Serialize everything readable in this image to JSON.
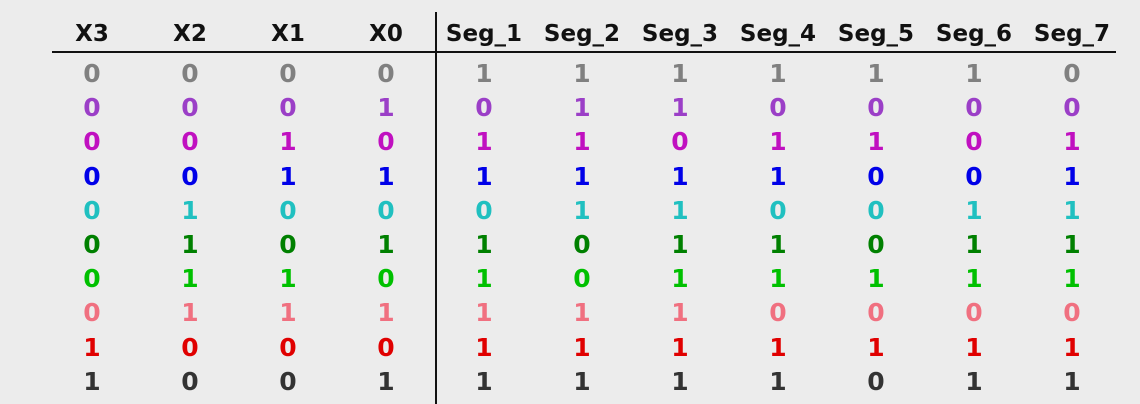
{
  "table": {
    "columns": [
      "X3",
      "X2",
      "X1",
      "X0",
      "Seg_1",
      "Seg_2",
      "Seg_3",
      "Seg_4",
      "Seg_5",
      "Seg_6",
      "Seg_7"
    ],
    "rows": [
      {
        "color": "#808080",
        "cells": [
          "0",
          "0",
          "0",
          "0",
          "1",
          "1",
          "1",
          "1",
          "1",
          "1",
          "0"
        ]
      },
      {
        "color": "#9b3fc7",
        "cells": [
          "0",
          "0",
          "0",
          "1",
          "0",
          "1",
          "1",
          "0",
          "0",
          "0",
          "0"
        ]
      },
      {
        "color": "#c010c0",
        "cells": [
          "0",
          "0",
          "1",
          "0",
          "1",
          "1",
          "0",
          "1",
          "1",
          "0",
          "1"
        ]
      },
      {
        "color": "#0000e8",
        "cells": [
          "0",
          "0",
          "1",
          "1",
          "1",
          "1",
          "1",
          "1",
          "0",
          "0",
          "1"
        ]
      },
      {
        "color": "#20c0c0",
        "cells": [
          "0",
          "1",
          "0",
          "0",
          "0",
          "1",
          "1",
          "0",
          "0",
          "1",
          "1"
        ]
      },
      {
        "color": "#008000",
        "cells": [
          "0",
          "1",
          "0",
          "1",
          "1",
          "0",
          "1",
          "1",
          "0",
          "1",
          "1"
        ]
      },
      {
        "color": "#00c000",
        "cells": [
          "0",
          "1",
          "1",
          "0",
          "1",
          "0",
          "1",
          "1",
          "1",
          "1",
          "1"
        ]
      },
      {
        "color": "#f07080",
        "cells": [
          "0",
          "1",
          "1",
          "1",
          "1",
          "1",
          "1",
          "0",
          "0",
          "0",
          "0"
        ]
      },
      {
        "color": "#e00000",
        "cells": [
          "1",
          "0",
          "0",
          "0",
          "1",
          "1",
          "1",
          "1",
          "1",
          "1",
          "1"
        ]
      },
      {
        "color": "#333333",
        "cells": [
          "1",
          "0",
          "0",
          "1",
          "1",
          "1",
          "1",
          "1",
          "0",
          "1",
          "1"
        ]
      }
    ]
  }
}
